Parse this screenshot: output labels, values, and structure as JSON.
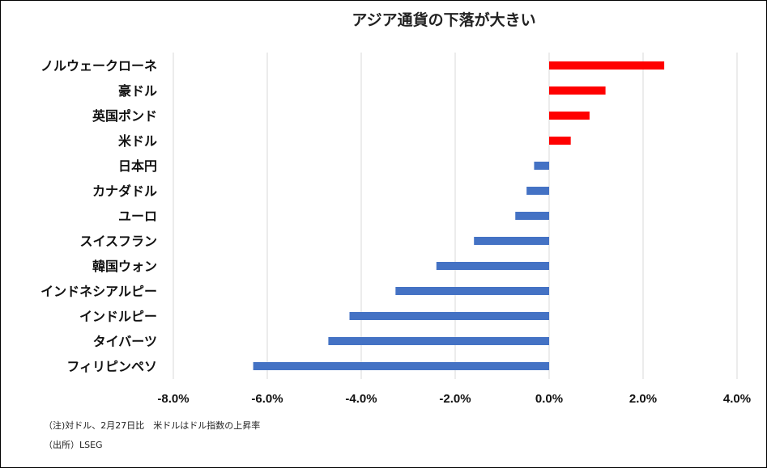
{
  "chart_data": {
    "type": "bar",
    "orientation": "horizontal",
    "title": "アジア通貨の下落が大きい",
    "categories": [
      "ノルウェークローネ",
      "豪ドル",
      "英国ポンド",
      "米ドル",
      "日本円",
      "カナダドル",
      "ユーロ",
      "スイスフラン",
      "韓国ウォン",
      "インドネシアルピー",
      "インドルピー",
      "タイバーツ",
      "フィリピンペソ"
    ],
    "values": [
      2.45,
      1.2,
      0.86,
      0.46,
      -0.32,
      -0.48,
      -0.72,
      -1.6,
      -2.4,
      -3.27,
      -4.25,
      -4.7,
      -6.3
    ],
    "xlim": [
      -8,
      4
    ],
    "xticks": [
      -8,
      -6,
      -4,
      -2,
      0,
      2,
      4
    ],
    "xtick_labels": [
      "-8.0%",
      "-6.0%",
      "-4.0%",
      "-2.0%",
      "0.0%",
      "2.0%",
      "4.0%"
    ],
    "grid": "vertical",
    "colors": {
      "positive": "#ff0000",
      "negative": "#4472c4",
      "grid": "#d9d9d9"
    }
  },
  "notes": {
    "note1": "（注)対ドル、2月27日比　米ドルはドル指数の上昇率",
    "note2": "（出所）LSEG"
  }
}
